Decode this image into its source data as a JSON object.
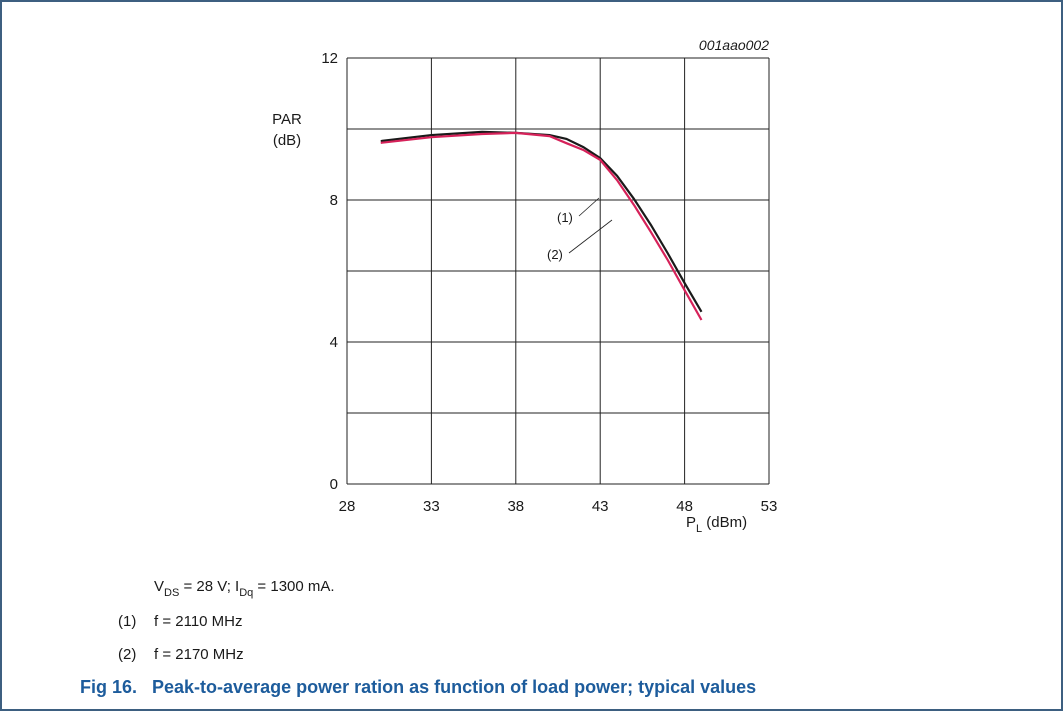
{
  "chart_data": {
    "type": "line",
    "annotation": "001aao002",
    "y_label": [
      "PAR",
      "(dB)"
    ],
    "x_label": [
      "P",
      "L",
      " (dBm)"
    ],
    "xlim": [
      28,
      53
    ],
    "xticks": [
      28,
      33,
      38,
      43,
      48,
      53
    ],
    "ylim": [
      0,
      12
    ],
    "yticks": [
      0,
      4,
      8,
      12
    ],
    "ygrid_lines": [
      0,
      2,
      4,
      6,
      8,
      10,
      12
    ],
    "grid": true,
    "x": [
      30,
      33,
      36,
      38,
      40,
      41,
      42,
      43,
      44,
      45,
      46,
      47,
      48,
      49
    ],
    "series": [
      {
        "name": "(1)",
        "color": "#1a1a1a",
        "description": "f = 2110 MHz",
        "values": [
          9.66,
          9.83,
          9.92,
          9.89,
          9.83,
          9.72,
          9.49,
          9.18,
          8.68,
          8.03,
          7.3,
          6.5,
          5.66,
          4.85
        ]
      },
      {
        "name": "(2)",
        "color": "#d6225a",
        "description": "f = 2170 MHz",
        "values": [
          9.61,
          9.77,
          9.86,
          9.89,
          9.8,
          9.6,
          9.41,
          9.13,
          8.56,
          7.86,
          7.1,
          6.31,
          5.46,
          4.62
        ]
      }
    ],
    "conditions": [
      "V",
      "DS",
      " = 28 V; I",
      "Dq",
      " = 1300 mA."
    ],
    "figure_title": "Fig 16.   Peak-to-average power ration as function of load power; typical values"
  }
}
